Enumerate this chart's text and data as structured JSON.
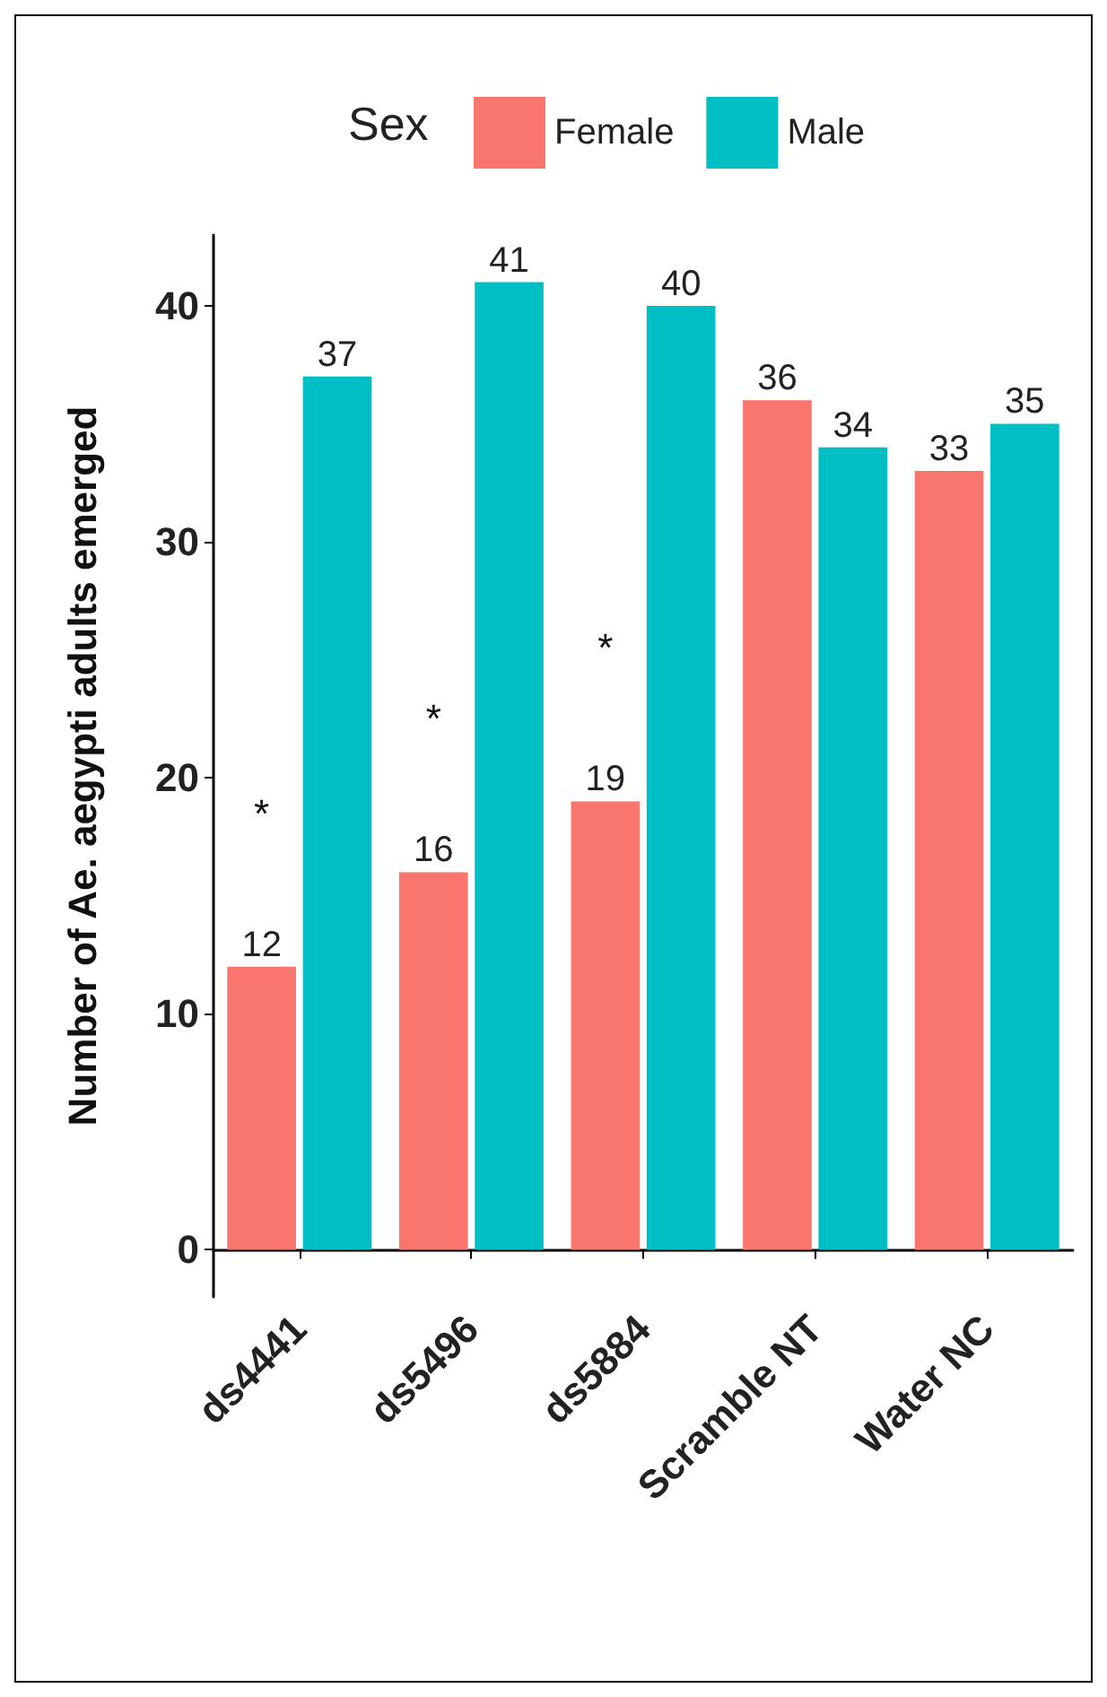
{
  "chart_data": {
    "type": "bar",
    "ylabel": "Number of Ae. aegypti adults emerged",
    "legend_title": "Sex",
    "categories": [
      "ds4441",
      "ds5496",
      "ds5884",
      "Scramble NT",
      "Water NC"
    ],
    "series": [
      {
        "name": "Female",
        "color": "#f8766d",
        "values": [
          12,
          16,
          19,
          36,
          33
        ]
      },
      {
        "name": "Male",
        "color": "#00bfc4",
        "values": [
          37,
          41,
          40,
          34,
          35
        ]
      }
    ],
    "ylim": [
      -2,
      43
    ],
    "yticks": [
      0,
      10,
      20,
      30,
      40
    ],
    "data_labels": true,
    "grid": false,
    "legend": "top",
    "annotations": [
      {
        "text": "*",
        "x": "ds4441",
        "y": 18.5
      },
      {
        "text": "*",
        "x": "ds5496",
        "y": 22.5
      },
      {
        "text": "*",
        "x": "ds5884",
        "y": 25.5
      }
    ]
  }
}
